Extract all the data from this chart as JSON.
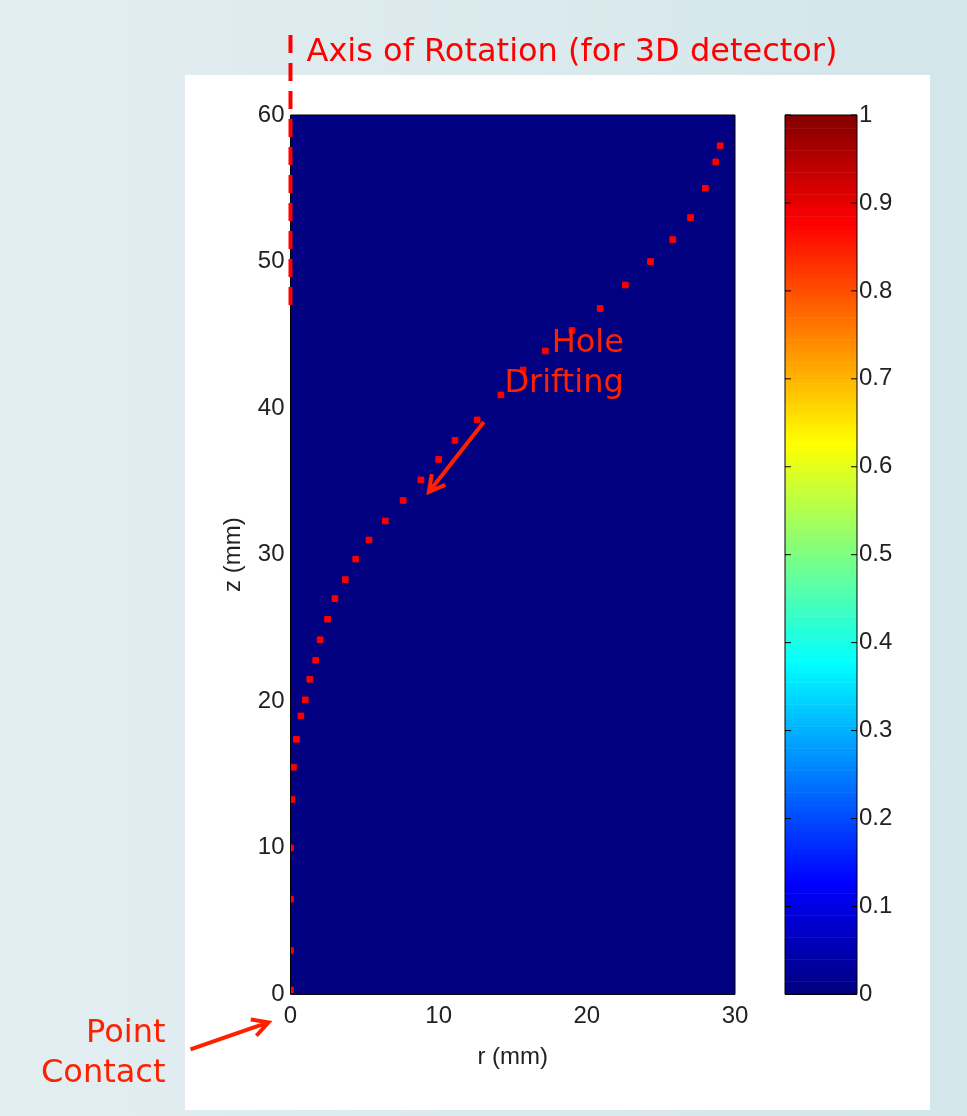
{
  "chart_data": {
    "type": "scatter",
    "xlabel": "r (mm)",
    "ylabel": "z (mm)",
    "xlim": [
      0,
      30
    ],
    "ylim": [
      0,
      60
    ],
    "xticks": [
      0,
      10,
      20,
      30
    ],
    "yticks": [
      0,
      10,
      20,
      30,
      40,
      50,
      60
    ],
    "clim": [
      0,
      1
    ],
    "cticks": [
      0,
      0.1,
      0.2,
      0.3,
      0.4,
      0.5,
      0.6,
      0.7,
      0.8,
      0.9,
      1
    ],
    "series": [
      {
        "color": "#ff0000",
        "x": [
          0,
          0,
          0,
          0,
          0.1,
          0.2,
          0.4,
          0.7,
          1,
          1.3,
          1.7,
          2,
          2.5,
          3,
          3.7,
          4.4,
          5.3,
          6.4,
          7.6,
          8.8,
          10,
          11.1,
          12.6,
          14.2,
          15.7,
          17.2,
          19,
          20.9,
          22.6,
          24.3,
          25.8,
          27,
          28,
          28.7,
          29
        ],
        "values": [
          0.3,
          3,
          6.5,
          10,
          13.3,
          15.5,
          17.4,
          19,
          20.1,
          21.5,
          22.8,
          24.2,
          25.6,
          27,
          28.3,
          29.7,
          31,
          32.3,
          33.7,
          35.1,
          36.5,
          37.8,
          39.2,
          40.9,
          42.6,
          43.9,
          45.3,
          46.8,
          48.4,
          50,
          51.5,
          53,
          55,
          56.8,
          57.9
        ]
      }
    ],
    "marker": "square",
    "ref_lines": [
      {
        "axis": "x",
        "value": 0,
        "label": "Axis of Rotation (for 3D detector)",
        "color": "#ff0000",
        "line_style": "dashed"
      }
    ],
    "annotations": [
      "Hole Drifting",
      "Point Contact"
    ],
    "grid": false,
    "legend": false
  }
}
